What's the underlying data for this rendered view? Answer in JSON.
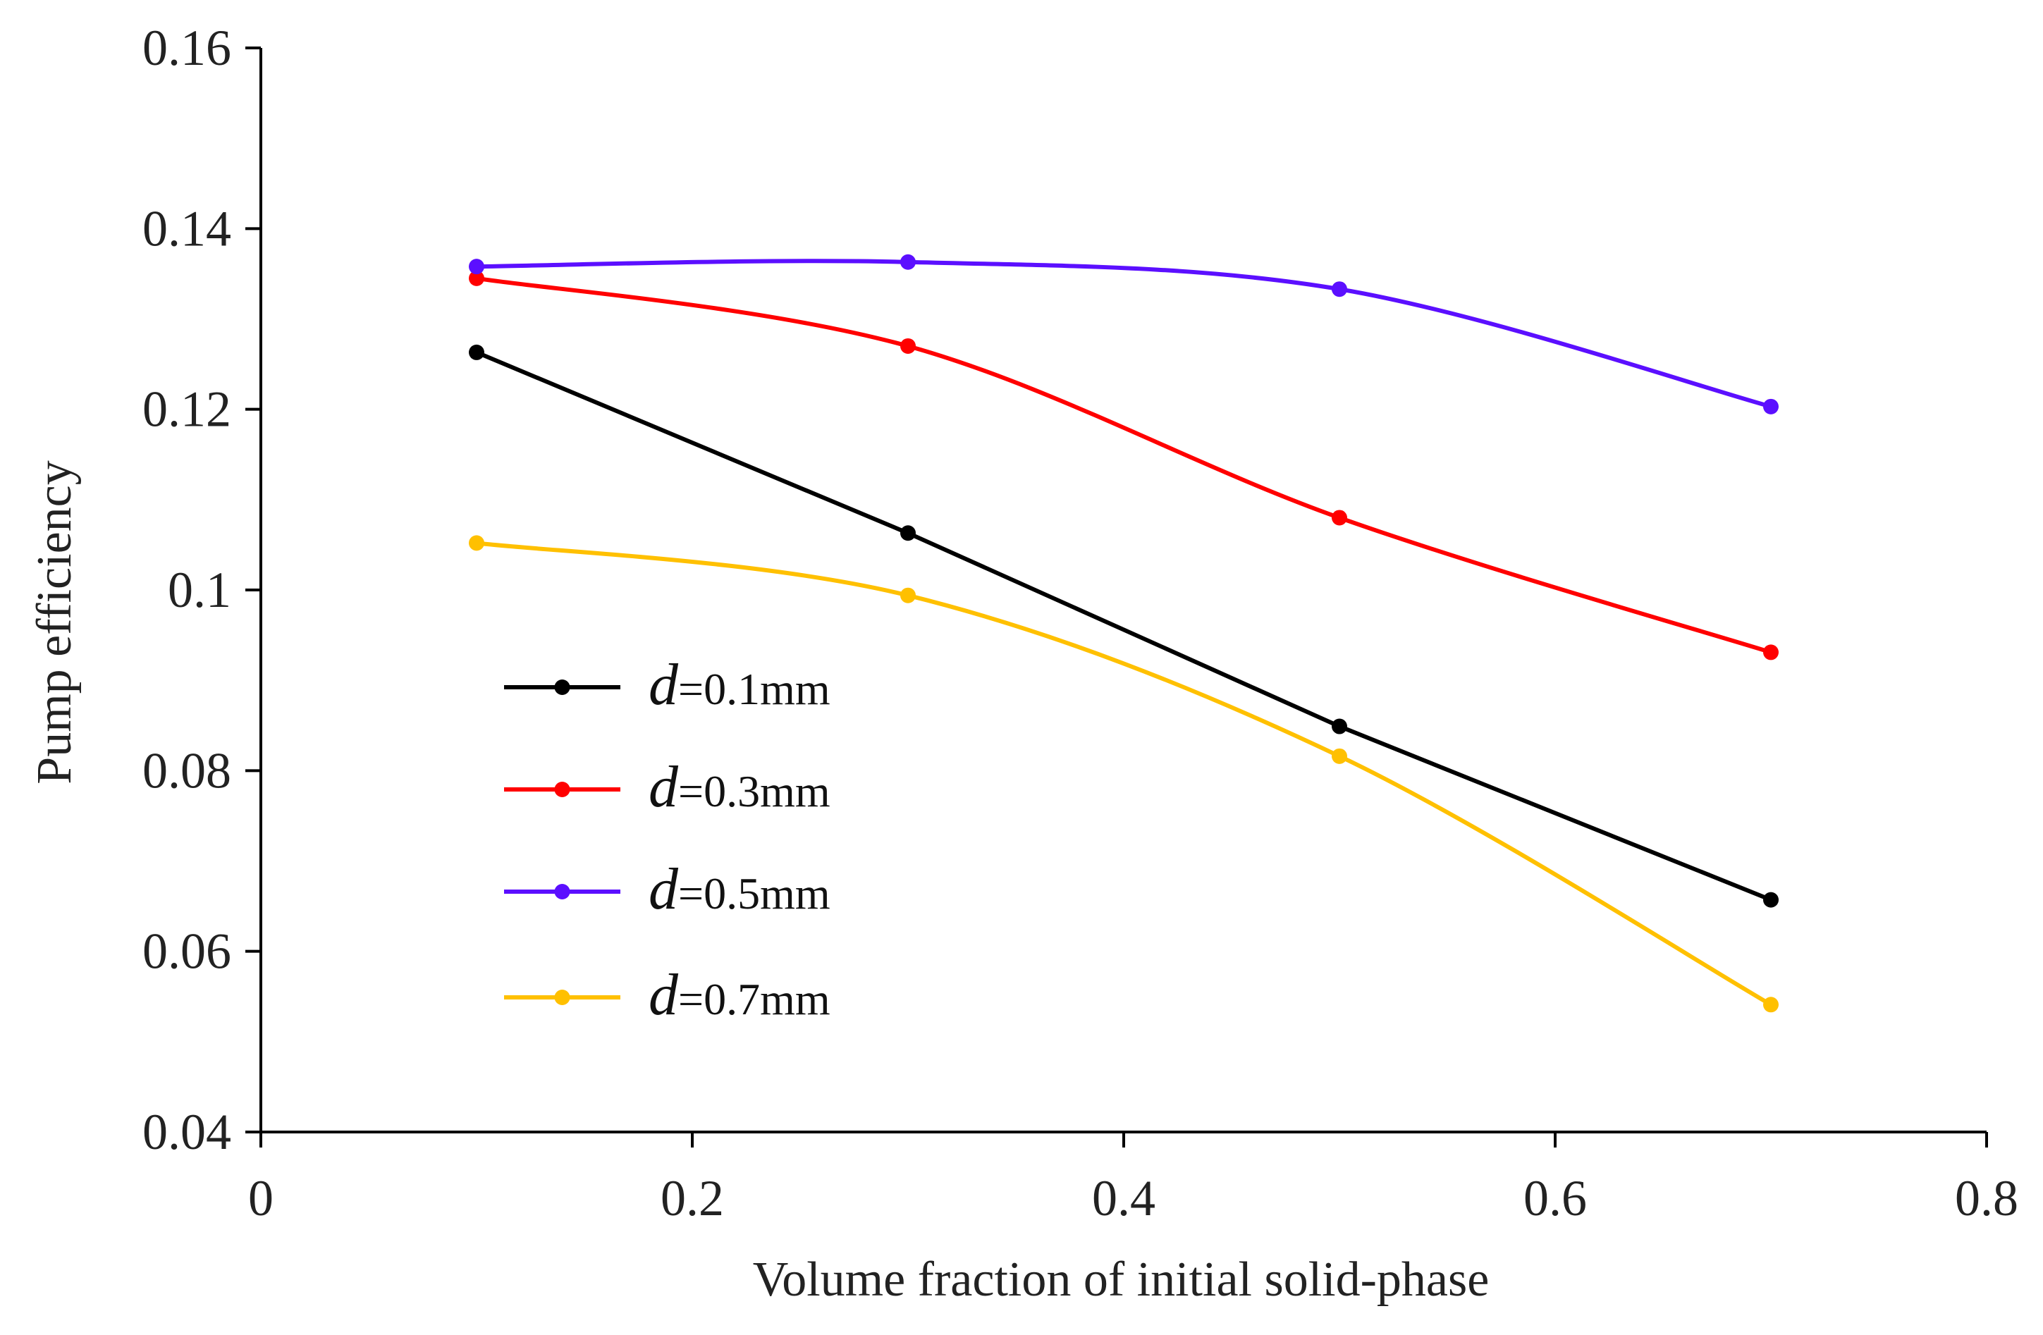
{
  "chart_data": {
    "type": "line",
    "title": "",
    "xlabel": "Volume fraction of initial solid-phase",
    "ylabel": "Pump efficiency",
    "xlim": [
      0,
      0.8
    ],
    "ylim": [
      0.04,
      0.16
    ],
    "xticks": [
      0,
      0.2,
      0.4,
      0.6,
      0.8
    ],
    "yticks": [
      0.04,
      0.06,
      0.08,
      0.1,
      0.12,
      0.14,
      0.16
    ],
    "xtick_labels": [
      "0",
      "0.2",
      "0.4",
      "0.6",
      "0.8"
    ],
    "ytick_labels": [
      "0.04",
      "0.06",
      "0.08",
      "0.1",
      "0.12",
      "0.14",
      "0.16"
    ],
    "grid": false,
    "legend_position": "center-left",
    "x": [
      0.1,
      0.3,
      0.5,
      0.7
    ],
    "series": [
      {
        "name": "d=0.1mm",
        "name_symbol": "d",
        "name_rest": "=0.1mm",
        "color": "#000000",
        "smooth": false,
        "values": [
          0.1263,
          0.1063,
          0.0849,
          0.0657
        ]
      },
      {
        "name": "d=0.3mm",
        "name_symbol": "d",
        "name_rest": "=0.3mm",
        "color": "#ff0000",
        "smooth": true,
        "values": [
          0.1345,
          0.127,
          0.108,
          0.0931
        ]
      },
      {
        "name": "d=0.5mm",
        "name_symbol": "d",
        "name_rest": "=0.5mm",
        "color": "#5b0fff",
        "smooth": true,
        "values": [
          0.1358,
          0.1363,
          0.1333,
          0.1203
        ]
      },
      {
        "name": "d=0.7mm",
        "name_symbol": "d",
        "name_rest": "=0.7mm",
        "color": "#ffc000",
        "smooth": true,
        "values": [
          0.1052,
          0.0994,
          0.0816,
          0.0541
        ]
      }
    ]
  }
}
